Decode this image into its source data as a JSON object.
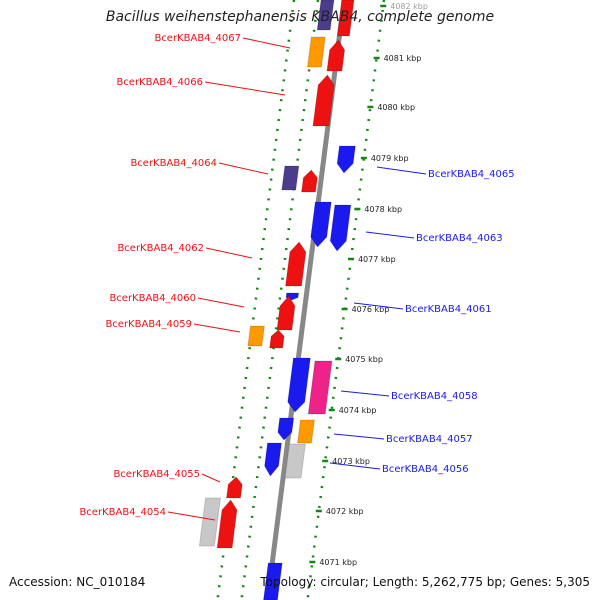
{
  "title": "Bacillus weihenstephanensis KBAB4, complete genome",
  "footer": {
    "accession": "Accession: NC_010184",
    "topology": "Topology: circular; Length: 5,262,775 bp; Genes: 5,305"
  },
  "colors": {
    "forward": "#ee1111",
    "reverse": "#1a1aee",
    "purple": "#4b3c8c",
    "orange": "#ff9900",
    "pink": "#ee2288",
    "gray": "#c8c8c8",
    "axis": "#888888",
    "dots": "#118811"
  },
  "scale_labels": [
    "4082 kbp",
    "4081 kbp",
    "4080 kbp",
    "4079 kbp",
    "4078 kbp",
    "4077 kbp",
    "4076 kbp",
    "4075 kbp",
    "4074 kbp",
    "4073 kbp",
    "4072 kbp",
    "4071 kbp"
  ],
  "left_labels": [
    "BcerKBAB4_4067",
    "BcerKBAB4_4066",
    "BcerKBAB4_4064",
    "BcerKBAB4_4062",
    "BcerKBAB4_4060",
    "BcerKBAB4_4059",
    "BcerKBAB4_4055",
    "BcerKBAB4_4054"
  ],
  "right_labels": [
    "BcerKBAB4_4065",
    "BcerKBAB4_4063",
    "BcerKBAB4_4061",
    "BcerKBAB4_4058",
    "BcerKBAB4_4057",
    "BcerKBAB4_4056"
  ]
}
